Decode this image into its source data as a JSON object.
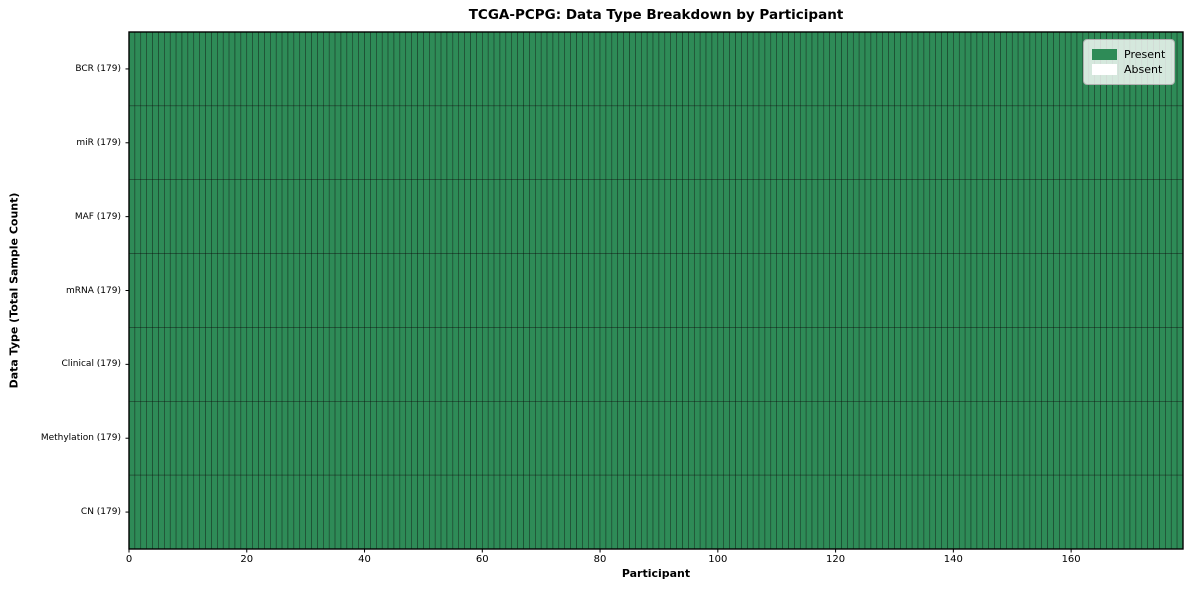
{
  "chart_data": {
    "type": "heatmap",
    "title": "TCGA-PCPG: Data Type Breakdown by Participant",
    "xlabel": "Participant",
    "ylabel": "Data Type (Total Sample Count)",
    "n_participants": 179,
    "xlim": [
      0,
      179
    ],
    "xticks": [
      0,
      20,
      40,
      60,
      80,
      100,
      120,
      140,
      160
    ],
    "grid": true,
    "rows": [
      {
        "label": "BCR",
        "total": 179,
        "present": 179,
        "display": "BCR (179)"
      },
      {
        "label": "miR",
        "total": 179,
        "present": 179,
        "display": "miR (179)"
      },
      {
        "label": "MAF",
        "total": 179,
        "present": 179,
        "display": "MAF (179)"
      },
      {
        "label": "mRNA",
        "total": 179,
        "present": 179,
        "display": "mRNA (179)"
      },
      {
        "label": "Clinical",
        "total": 179,
        "present": 179,
        "display": "Clinical (179)"
      },
      {
        "label": "Methylation",
        "total": 179,
        "present": 179,
        "display": "Methylation (179)"
      },
      {
        "label": "CN",
        "total": 179,
        "present": 179,
        "display": "CN (179)"
      }
    ],
    "legend": {
      "position": "upper right",
      "entries": [
        {
          "label": "Present",
          "color": "#2e8b57"
        },
        {
          "label": "Absent",
          "color": "#ffffff"
        }
      ]
    },
    "colors": {
      "present": "#2e8b57",
      "absent": "#ffffff",
      "cell_edge": "rgba(0,0,0,0.55)",
      "spine": "#000000"
    }
  }
}
